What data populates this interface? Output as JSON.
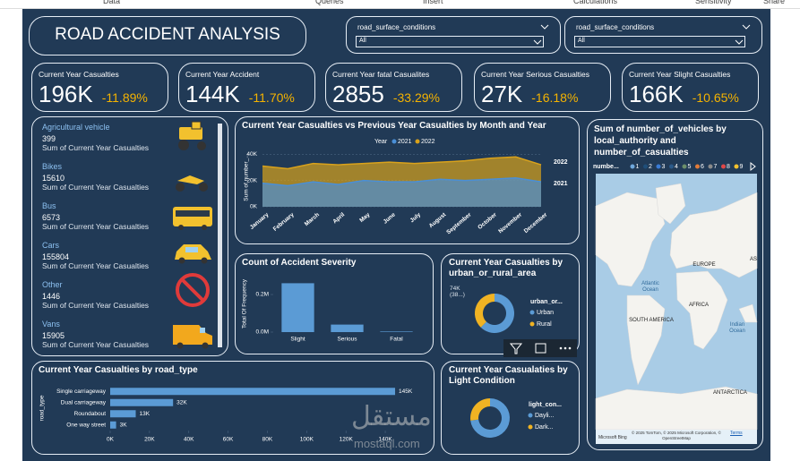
{
  "ribbon": [
    "Data",
    "Queries",
    "Insert",
    "Calculations",
    "Sensitivity",
    "Share"
  ],
  "header": {
    "title": "ROAD ACCIDENT ANALYSIS"
  },
  "slicers": [
    {
      "label": "road_surface_conditions",
      "selected": "All"
    },
    {
      "label": "road_surface_conditions",
      "selected": "All"
    }
  ],
  "kpis": [
    {
      "title": "Current Year Casualties",
      "value": "196K",
      "change": "-11.89%"
    },
    {
      "title": "Current Year Accident",
      "value": "144K",
      "change": "-11.70%"
    },
    {
      "title": "Current Year fatal Casualites",
      "value": "2855",
      "change": "-33.29%"
    },
    {
      "title": "Current Year Serious Casualties",
      "value": "27K",
      "change": "-16.18%"
    },
    {
      "title": "Current Year Slight Casualties",
      "value": "166K",
      "change": "-10.65%"
    }
  ],
  "vehicles": {
    "measure": "Sum of Current Year Casualties",
    "items": [
      {
        "name": "Agricultural vehicle",
        "value": "399"
      },
      {
        "name": "Bikes",
        "value": "15610"
      },
      {
        "name": "Bus",
        "value": "6573"
      },
      {
        "name": "Cars",
        "value": "155804"
      },
      {
        "name": "Other",
        "value": "1446"
      },
      {
        "name": "Vans",
        "value": "15905"
      }
    ]
  },
  "chart_data": [
    {
      "type": "area",
      "title": "Current Year Casualties vs Previous Year Casualties by Month and Year",
      "y_label": "Sum of number_...",
      "legend_title": "Year",
      "categories": [
        "January",
        "February",
        "March",
        "April",
        "May",
        "June",
        "July",
        "August",
        "September",
        "October",
        "November",
        "December"
      ],
      "series": [
        {
          "name": "2021",
          "color": "#4a8fd6",
          "values": [
            18000,
            16000,
            19000,
            17000,
            20000,
            19000,
            19000,
            21000,
            20000,
            21000,
            22000,
            19000
          ]
        },
        {
          "name": "2022",
          "color": "#d9a21b",
          "values": [
            31000,
            29000,
            33000,
            32000,
            33000,
            34000,
            33000,
            34000,
            35000,
            37000,
            38000,
            32000
          ]
        }
      ],
      "ylim": [
        0,
        45000
      ],
      "yticks": [
        {
          "value": 0,
          "label": "0K"
        },
        {
          "value": 20000,
          "label": "20K"
        },
        {
          "value": 40000,
          "label": "40K"
        }
      ]
    },
    {
      "type": "bar",
      "title": "Count of Accident Severity",
      "y_label": "Total Of Frequency",
      "categories": [
        "Slight",
        "Serious",
        "Fatal"
      ],
      "values": [
        0.26,
        0.04,
        0.003
      ],
      "color": "#5b9bd5",
      "ylim": [
        0,
        0.3
      ],
      "yticks": [
        {
          "value": 0,
          "label": "0.0M"
        },
        {
          "value": 0.2,
          "label": "0.2M"
        }
      ]
    },
    {
      "type": "donut",
      "title": "Current Year Casualties by urban_or_rural_area",
      "legend_title": "urban_or...",
      "categories": [
        "Urban",
        "Rural"
      ],
      "values": [
        122,
        74
      ],
      "value_labels": [
        null,
        "74K (38...)"
      ],
      "colors": [
        "#5b9bd5",
        "#f0b323"
      ]
    },
    {
      "type": "hbar",
      "title": "Current Year Casualties by road_type",
      "y_label": "road_type",
      "categories": [
        "Single carriageway",
        "Dual carriageway",
        "Roundabout",
        "One way street"
      ],
      "values": [
        145000,
        32000,
        13000,
        3000
      ],
      "value_labels": [
        "145K",
        "32K",
        "13K",
        "3K"
      ],
      "color": "#5b9bd5",
      "xlim": [
        0,
        150000
      ],
      "xticks": [
        {
          "value": 0,
          "label": "0K"
        },
        {
          "value": 20000,
          "label": "20K"
        },
        {
          "value": 40000,
          "label": "40K"
        },
        {
          "value": 60000,
          "label": "60K"
        },
        {
          "value": 80000,
          "label": "80K"
        },
        {
          "value": 100000,
          "label": "100K"
        },
        {
          "value": 120000,
          "label": "120K"
        },
        {
          "value": 140000,
          "label": "140K"
        }
      ]
    },
    {
      "type": "donut",
      "title": "Current Year Casualaties by Light Condition",
      "legend_title": "light_con...",
      "categories": [
        "Dayli...",
        "Dark..."
      ],
      "values": [
        143,
        53
      ],
      "colors": [
        "#5b9bd5",
        "#f0b323"
      ]
    }
  ],
  "map": {
    "title": "Sum of number_of_vehicles by local_authority and number_of_casualties",
    "legend_title": "numbe...",
    "legend_items": [
      "1",
      "2",
      "3",
      "4",
      "5",
      "6",
      "7",
      "8",
      "9"
    ],
    "legend_colors": [
      "#6fa8dc",
      "#1f4e79",
      "#3a7bd5",
      "#2b5a8a",
      "#6b8e6b",
      "#e07b39",
      "#8a8a8a",
      "#e04848",
      "#f2c12e"
    ],
    "labels": [
      "EUROPE",
      "AS",
      "Atlantic Ocean",
      "AFRICA",
      "SOUTH AMERICA",
      "Indian Ocean",
      "ANTARCTICA"
    ],
    "attribution": "© 2025 TomTom, © 2025 Microsoft Corporation, © OpenStreetMap",
    "terms": "Terms",
    "provider": "Microsoft Bing"
  },
  "watermark": {
    "arabic": "مستقل",
    "latin": "mostaql.com"
  }
}
